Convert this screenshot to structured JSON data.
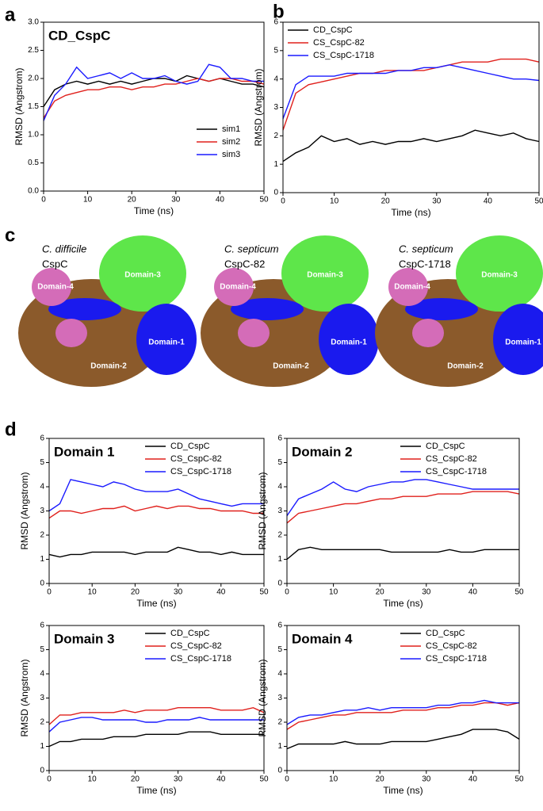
{
  "panel_labels": [
    "a",
    "b",
    "c",
    "d"
  ],
  "structures": [
    {
      "species": "C. difficile",
      "protein": "CspC",
      "domains": [
        "Domain-1",
        "Domain-2",
        "Domain-3",
        "Domain-4"
      ]
    },
    {
      "species": "C. septicum",
      "protein": "CspC-82",
      "domains": [
        "Domain-1",
        "Domain-2",
        "Domain-3",
        "Domain-4"
      ]
    },
    {
      "species": "C. septicum",
      "protein": "CspC-1718",
      "domains": [
        "Domain-1",
        "Domain-2",
        "Domain-3",
        "Domain-4"
      ]
    }
  ],
  "chart_data": [
    {
      "type": "line",
      "title": "CD_CspC",
      "xlabel": "Time (ns)",
      "ylabel": "RMSD (Angstrom)",
      "legend": "lower right",
      "x": [
        0,
        2.5,
        5,
        7.5,
        10,
        12.5,
        15,
        17.5,
        20,
        22.5,
        25,
        27.5,
        30,
        32.5,
        35,
        37.5,
        40,
        42.5,
        45,
        47.5,
        50
      ],
      "xlim": [
        0,
        50
      ],
      "xticks": [
        0,
        10,
        20,
        30,
        40,
        50
      ],
      "ylim": [
        0,
        3
      ],
      "yticks": [
        {
          "value": 0,
          "label": "0.0"
        },
        0.5,
        {
          "value": 1,
          "label": "1.0"
        },
        1.5,
        {
          "value": 2,
          "label": "2.0"
        },
        2.5,
        {
          "value": 3,
          "label": "3.0"
        }
      ],
      "series": [
        {
          "name": "sim1",
          "color": "#000000",
          "values": [
            1.5,
            1.8,
            1.9,
            1.95,
            1.9,
            1.95,
            1.9,
            1.95,
            1.9,
            1.95,
            2.0,
            2.0,
            1.95,
            2.05,
            2.0,
            1.95,
            2.0,
            1.95,
            1.9,
            1.9,
            1.85
          ]
        },
        {
          "name": "sim2",
          "color": "#e0201c",
          "values": [
            1.3,
            1.6,
            1.7,
            1.75,
            1.8,
            1.8,
            1.85,
            1.85,
            1.8,
            1.85,
            1.85,
            1.9,
            1.9,
            1.95,
            2.0,
            1.95,
            2.0,
            2.0,
            1.95,
            1.95,
            1.9
          ]
        },
        {
          "name": "sim3",
          "color": "#1a1aff",
          "values": [
            1.25,
            1.7,
            1.9,
            2.2,
            2.0,
            2.05,
            2.1,
            2.0,
            2.1,
            2.0,
            2.0,
            2.05,
            1.95,
            1.9,
            1.95,
            2.25,
            2.2,
            2.0,
            2.0,
            1.95,
            1.95
          ]
        }
      ]
    },
    {
      "type": "line",
      "xlabel": "Time (ns)",
      "ylabel": "RMSD (Angstrom)",
      "legend": "upper left",
      "x": [
        0,
        2.5,
        5,
        7.5,
        10,
        12.5,
        15,
        17.5,
        20,
        22.5,
        25,
        27.5,
        30,
        32.5,
        35,
        37.5,
        40,
        42.5,
        45,
        47.5,
        50
      ],
      "xlim": [
        0,
        50
      ],
      "xticks": [
        0,
        10,
        20,
        30,
        40,
        50
      ],
      "ylim": [
        0,
        6
      ],
      "yticks": [
        0,
        1,
        2,
        3,
        4,
        5,
        6
      ],
      "series": [
        {
          "name": "CD_CspC",
          "color": "#000000",
          "values": [
            1.1,
            1.4,
            1.6,
            2.0,
            1.8,
            1.9,
            1.7,
            1.8,
            1.7,
            1.8,
            1.8,
            1.9,
            1.8,
            1.9,
            2.0,
            2.2,
            2.1,
            2.0,
            2.1,
            1.9,
            1.8
          ]
        },
        {
          "name": "CS_CspC-82",
          "color": "#e0201c",
          "values": [
            2.2,
            3.5,
            3.8,
            3.9,
            4.0,
            4.1,
            4.2,
            4.2,
            4.3,
            4.3,
            4.3,
            4.3,
            4.4,
            4.5,
            4.6,
            4.6,
            4.6,
            4.7,
            4.7,
            4.7,
            4.6
          ]
        },
        {
          "name": "CS_CspC-1718",
          "color": "#1a1aff",
          "values": [
            2.6,
            3.8,
            4.1,
            4.1,
            4.1,
            4.2,
            4.2,
            4.2,
            4.2,
            4.3,
            4.3,
            4.4,
            4.4,
            4.5,
            4.4,
            4.3,
            4.2,
            4.1,
            4.0,
            4.0,
            3.95
          ]
        }
      ]
    },
    {
      "type": "line",
      "title": "Domain 1",
      "xlabel": "Time (ns)",
      "ylabel": "RMSD (Angstrom)",
      "legend": "upper right",
      "x": [
        0,
        2.5,
        5,
        7.5,
        10,
        12.5,
        15,
        17.5,
        20,
        22.5,
        25,
        27.5,
        30,
        32.5,
        35,
        37.5,
        40,
        42.5,
        45,
        47.5,
        50
      ],
      "xlim": [
        0,
        50
      ],
      "xticks": [
        0,
        10,
        20,
        30,
        40,
        50
      ],
      "ylim": [
        0,
        6
      ],
      "yticks": [
        0,
        1,
        2,
        3,
        4,
        5,
        6
      ],
      "series": [
        {
          "name": "CD_CspC",
          "color": "#000000",
          "values": [
            1.2,
            1.1,
            1.2,
            1.2,
            1.3,
            1.3,
            1.3,
            1.3,
            1.2,
            1.3,
            1.3,
            1.3,
            1.5,
            1.4,
            1.3,
            1.3,
            1.2,
            1.3,
            1.2,
            1.2,
            1.2
          ]
        },
        {
          "name": "CS_CspC-82",
          "color": "#e0201c",
          "values": [
            2.7,
            3.0,
            3.0,
            2.9,
            3.0,
            3.1,
            3.1,
            3.2,
            3.0,
            3.1,
            3.2,
            3.1,
            3.2,
            3.2,
            3.1,
            3.1,
            3.0,
            3.0,
            3.0,
            2.9,
            2.9
          ]
        },
        {
          "name": "CS_CspC-1718",
          "color": "#1a1aff",
          "values": [
            3.0,
            3.3,
            4.3,
            4.2,
            4.1,
            4.0,
            4.2,
            4.1,
            3.9,
            3.8,
            3.8,
            3.8,
            3.9,
            3.7,
            3.5,
            3.4,
            3.3,
            3.2,
            3.3,
            3.3,
            3.3
          ]
        }
      ]
    },
    {
      "type": "line",
      "title": "Domain 2",
      "xlabel": "Time (ns)",
      "ylabel": "RMSD (Angstrom)",
      "legend": "upper right",
      "x": [
        0,
        2.5,
        5,
        7.5,
        10,
        12.5,
        15,
        17.5,
        20,
        22.5,
        25,
        27.5,
        30,
        32.5,
        35,
        37.5,
        40,
        42.5,
        45,
        47.5,
        50
      ],
      "xlim": [
        0,
        50
      ],
      "xticks": [
        0,
        10,
        20,
        30,
        40,
        50
      ],
      "ylim": [
        0,
        6
      ],
      "yticks": [
        0,
        1,
        2,
        3,
        4,
        5,
        6
      ],
      "series": [
        {
          "name": "CD_CspC",
          "color": "#000000",
          "values": [
            1.0,
            1.4,
            1.5,
            1.4,
            1.4,
            1.4,
            1.4,
            1.4,
            1.4,
            1.3,
            1.3,
            1.3,
            1.3,
            1.3,
            1.4,
            1.3,
            1.3,
            1.4,
            1.4,
            1.4,
            1.4
          ]
        },
        {
          "name": "CS_CspC-82",
          "color": "#e0201c",
          "values": [
            2.5,
            2.9,
            3.0,
            3.1,
            3.2,
            3.3,
            3.3,
            3.4,
            3.5,
            3.5,
            3.6,
            3.6,
            3.6,
            3.7,
            3.7,
            3.7,
            3.8,
            3.8,
            3.8,
            3.8,
            3.7
          ]
        },
        {
          "name": "CS_CspC-1718",
          "color": "#1a1aff",
          "values": [
            2.8,
            3.5,
            3.7,
            3.9,
            4.2,
            3.9,
            3.8,
            4.0,
            4.1,
            4.2,
            4.2,
            4.3,
            4.3,
            4.2,
            4.1,
            4.0,
            3.9,
            3.9,
            3.9,
            3.9,
            3.9
          ]
        }
      ]
    },
    {
      "type": "line",
      "title": "Domain 3",
      "xlabel": "Time (ns)",
      "ylabel": "RMSD (Angstrom)",
      "legend": "upper right",
      "x": [
        0,
        2.5,
        5,
        7.5,
        10,
        12.5,
        15,
        17.5,
        20,
        22.5,
        25,
        27.5,
        30,
        32.5,
        35,
        37.5,
        40,
        42.5,
        45,
        47.5,
        50
      ],
      "xlim": [
        0,
        50
      ],
      "xticks": [
        0,
        10,
        20,
        30,
        40,
        50
      ],
      "ylim": [
        0,
        6
      ],
      "yticks": [
        0,
        1,
        2,
        3,
        4,
        5,
        6
      ],
      "series": [
        {
          "name": "CD_CspC",
          "color": "#000000",
          "values": [
            1.0,
            1.2,
            1.2,
            1.3,
            1.3,
            1.3,
            1.4,
            1.4,
            1.4,
            1.5,
            1.5,
            1.5,
            1.5,
            1.6,
            1.6,
            1.6,
            1.5,
            1.5,
            1.5,
            1.5,
            1.5
          ]
        },
        {
          "name": "CS_CspC-82",
          "color": "#e0201c",
          "values": [
            1.9,
            2.3,
            2.3,
            2.4,
            2.4,
            2.4,
            2.4,
            2.5,
            2.4,
            2.5,
            2.5,
            2.5,
            2.6,
            2.6,
            2.6,
            2.6,
            2.5,
            2.5,
            2.5,
            2.6,
            2.4
          ]
        },
        {
          "name": "CS_CspC-1718",
          "color": "#1a1aff",
          "values": [
            1.6,
            2.0,
            2.1,
            2.2,
            2.2,
            2.1,
            2.1,
            2.1,
            2.1,
            2.0,
            2.0,
            2.1,
            2.1,
            2.1,
            2.2,
            2.1,
            2.1,
            2.1,
            2.1,
            2.1,
            2.1
          ]
        }
      ]
    },
    {
      "type": "line",
      "title": "Domain 4",
      "xlabel": "Time (ns)",
      "ylabel": "RMSD (Angstrom)",
      "legend": "upper right",
      "x": [
        0,
        2.5,
        5,
        7.5,
        10,
        12.5,
        15,
        17.5,
        20,
        22.5,
        25,
        27.5,
        30,
        32.5,
        35,
        37.5,
        40,
        42.5,
        45,
        47.5,
        50
      ],
      "xlim": [
        0,
        50
      ],
      "xticks": [
        0,
        10,
        20,
        30,
        40,
        50
      ],
      "ylim": [
        0,
        6
      ],
      "yticks": [
        0,
        1,
        2,
        3,
        4,
        5,
        6
      ],
      "series": [
        {
          "name": "CD_CspC",
          "color": "#000000",
          "values": [
            0.9,
            1.1,
            1.1,
            1.1,
            1.1,
            1.2,
            1.1,
            1.1,
            1.1,
            1.2,
            1.2,
            1.2,
            1.2,
            1.3,
            1.4,
            1.5,
            1.7,
            1.7,
            1.7,
            1.6,
            1.3
          ]
        },
        {
          "name": "CS_CspC-82",
          "color": "#e0201c",
          "values": [
            1.7,
            2.0,
            2.1,
            2.2,
            2.3,
            2.3,
            2.4,
            2.4,
            2.4,
            2.4,
            2.5,
            2.5,
            2.5,
            2.6,
            2.6,
            2.7,
            2.7,
            2.8,
            2.8,
            2.7,
            2.8
          ]
        },
        {
          "name": "CS_CspC-1718",
          "color": "#1a1aff",
          "values": [
            1.9,
            2.2,
            2.3,
            2.3,
            2.4,
            2.5,
            2.5,
            2.6,
            2.5,
            2.6,
            2.6,
            2.6,
            2.6,
            2.7,
            2.7,
            2.8,
            2.8,
            2.9,
            2.8,
            2.8,
            2.8
          ]
        }
      ]
    }
  ]
}
